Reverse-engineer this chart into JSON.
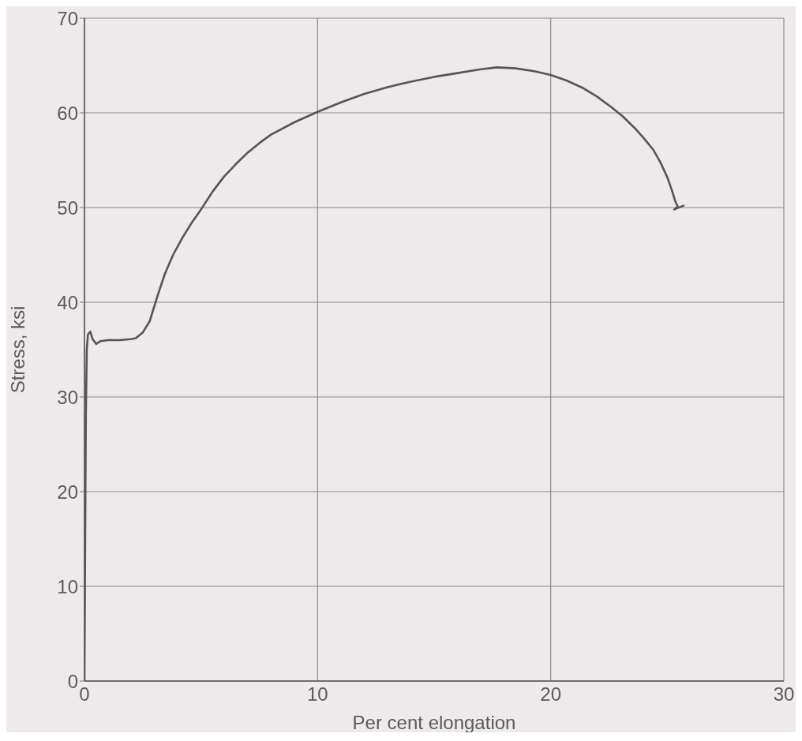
{
  "chart_data": {
    "type": "line",
    "xlabel": "Per cent elongation",
    "ylabel": "Stress, ksi",
    "x": [
      0,
      0.03,
      0.06,
      0.1,
      0.15,
      0.25,
      0.35,
      0.5,
      0.7,
      1.0,
      1.5,
      2.0,
      2.2,
      2.5,
      2.8,
      3.15,
      3.45,
      3.8,
      4.2,
      4.6,
      5.0,
      5.5,
      6,
      6.5,
      7,
      7.5,
      8,
      9,
      10,
      11,
      12,
      13,
      14,
      15,
      16,
      17,
      17.7,
      18.5,
      19.3,
      20,
      20.7,
      21.4,
      22,
      22.6,
      23.1,
      23.6,
      24.0,
      24.4,
      24.7,
      25.0,
      25.2,
      25.35,
      25.45,
      25.3,
      25.7
    ],
    "values": [
      0,
      15,
      28,
      35,
      36.6,
      36.9,
      36.1,
      35.6,
      35.9,
      36,
      36,
      36.1,
      36.2,
      36.8,
      38,
      40.8,
      43,
      45,
      46.8,
      48.4,
      49.8,
      51.7,
      53.3,
      54.6,
      55.8,
      56.8,
      57.7,
      59,
      60.1,
      61.1,
      62,
      62.7,
      63.3,
      63.8,
      64.2,
      64.6,
      64.8,
      64.7,
      64.4,
      64,
      63.4,
      62.6,
      61.7,
      60.6,
      59.6,
      58.4,
      57.3,
      56.1,
      54.8,
      53.2,
      51.8,
      50.6,
      50.1,
      49.8,
      50.2
    ],
    "color": "#555555",
    "xlim": [
      0,
      30
    ],
    "ylim": [
      0,
      70
    ],
    "xticks": [
      0,
      10,
      20,
      30
    ],
    "yticks": [
      0,
      10,
      20,
      30,
      40,
      50,
      60,
      70
    ],
    "grid": true
  }
}
